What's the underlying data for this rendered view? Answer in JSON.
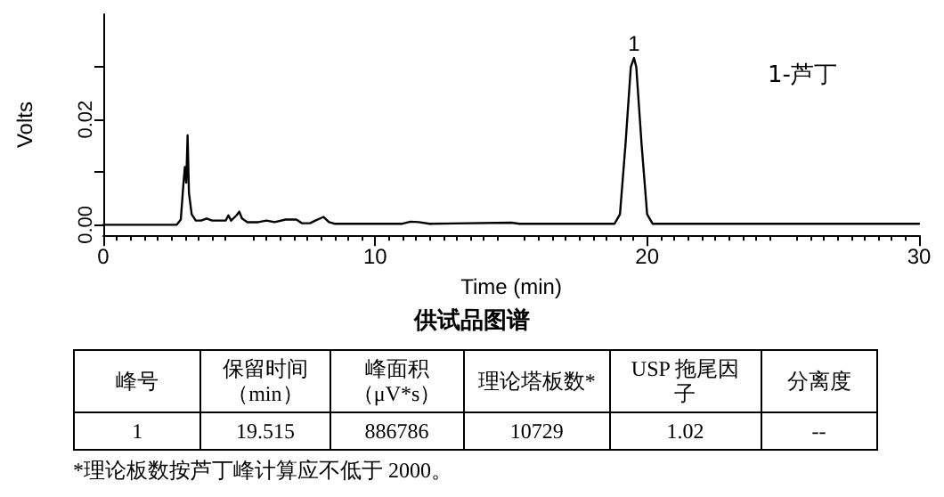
{
  "chart_data": [
    {
      "type": "line",
      "xlabel": "Time (min)",
      "ylabel": "Volts",
      "color": "#000000",
      "x": [
        0,
        2.7,
        2.85,
        2.95,
        3.0,
        3.05,
        3.1,
        3.15,
        3.25,
        3.4,
        3.6,
        3.8,
        4.0,
        4.5,
        4.6,
        4.7,
        4.9,
        5.0,
        5.1,
        5.3,
        5.7,
        6.0,
        6.3,
        6.7,
        7.1,
        7.3,
        7.6,
        7.8,
        8.1,
        8.3,
        8.5,
        11.0,
        11.3,
        11.6,
        12.0,
        15.0,
        15.3,
        18.8,
        19.0,
        19.2,
        19.4,
        19.515,
        19.6,
        19.8,
        20.0,
        20.2,
        30
      ],
      "values": [
        0,
        0,
        0.001,
        0.008,
        0.011,
        0.008,
        0.017,
        0.006,
        0.002,
        0.0008,
        0.0008,
        0.0012,
        0.0008,
        0.0008,
        0.0018,
        0.0008,
        0.0018,
        0.0025,
        0.0012,
        0.0005,
        0.0005,
        0.0008,
        0.0005,
        0.001,
        0.001,
        0.0003,
        0.0003,
        0.0008,
        0.0015,
        0.0005,
        0.0002,
        0.0002,
        0.0006,
        0.0005,
        0.0002,
        0.0004,
        0.0002,
        0.0002,
        0.002,
        0.015,
        0.03,
        0.0317,
        0.03,
        0.015,
        0.002,
        0.0002,
        0.0002
      ],
      "xlim": [
        0,
        30
      ],
      "xticks": [
        0,
        10,
        20,
        30
      ],
      "ylim": [
        -0.002,
        0.04
      ],
      "yticks": [
        {
          "value": 0,
          "label": "0.00"
        },
        {
          "value": 0.01,
          "label": null
        },
        {
          "value": 0.02,
          "label": "0.02"
        },
        {
          "value": 0.03,
          "label": null
        }
      ],
      "annotations": [
        {
          "text": "1",
          "x": 19.515,
          "y": 0.0317
        },
        "1-芦丁"
      ],
      "grid": false,
      "marker": "none",
      "line_style": "solid"
    },
    {
      "type": "other",
      "title": "供试品图谱",
      "categories": [
        "峰号",
        "保留时间（min）",
        "峰面积（μV*s）",
        "理论塔板数*",
        "USP 拖尾因子",
        "分离度"
      ],
      "cell_labels": [
        [
          "1",
          "19.515",
          "886786",
          "10729",
          "1.02",
          "--"
        ]
      ],
      "annotations": [
        "*理论板数按芦丁峰计算应不低于 2000。"
      ]
    }
  ]
}
